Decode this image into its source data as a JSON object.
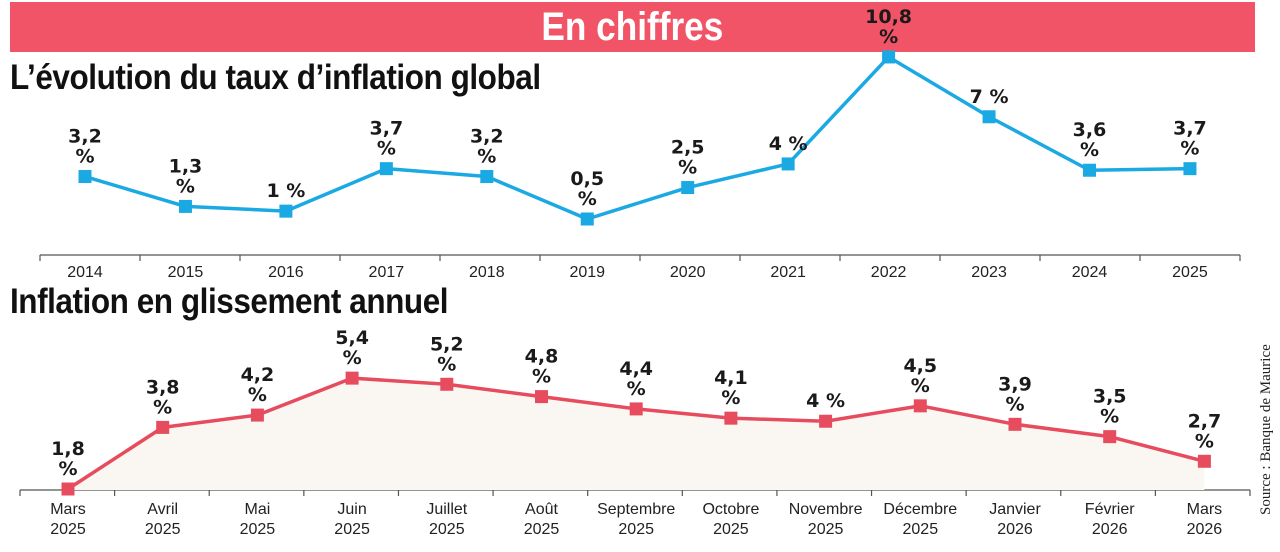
{
  "header": {
    "title": "En chiffres"
  },
  "source": "Source : Banque de Maurice",
  "colors": {
    "banner": "#f05466",
    "series1": "#1ba9e3",
    "series2": "#e74c5e",
    "fill2": "#faf7f2"
  },
  "chart_data": [
    {
      "type": "line",
      "title": "L’évolution du taux d’inflation global",
      "categories": [
        "2014",
        "2015",
        "2016",
        "2017",
        "2018",
        "2019",
        "2020",
        "2021",
        "2022",
        "2023",
        "2024",
        "2025"
      ],
      "values": [
        3.2,
        1.3,
        1,
        3.7,
        3.2,
        0.5,
        2.5,
        4,
        10.8,
        7,
        3.6,
        3.7
      ],
      "labels": [
        [
          "3,2",
          "%"
        ],
        [
          "1,3",
          "%"
        ],
        [
          "1 %"
        ],
        [
          "3,7",
          "%"
        ],
        [
          "3,2",
          "%"
        ],
        [
          "0,5",
          "%"
        ],
        [
          "2,5",
          "%"
        ],
        [
          "4 %"
        ],
        [
          "10,8",
          "%"
        ],
        [
          "7 %"
        ],
        [
          "3,6",
          "%"
        ],
        [
          "3,7",
          "%"
        ]
      ],
      "unit": "%",
      "grid": false
    },
    {
      "type": "area",
      "title": "Inflation en glissement annuel",
      "categories": [
        [
          "Mars",
          "2025"
        ],
        [
          "Avril",
          "2025"
        ],
        [
          "Mai",
          "2025"
        ],
        [
          "Juin",
          "2025"
        ],
        [
          "Juillet",
          "2025"
        ],
        [
          "Août",
          "2025"
        ],
        [
          "Septembre",
          "2025"
        ],
        [
          "Octobre",
          "2025"
        ],
        [
          "Novembre",
          "2025"
        ],
        [
          "Décembre",
          "2025"
        ],
        [
          "Janvier",
          "2026"
        ],
        [
          "Février",
          "2026"
        ],
        [
          "Mars",
          "2026"
        ]
      ],
      "values": [
        1.8,
        3.8,
        4.2,
        5.4,
        5.2,
        4.8,
        4.4,
        4.1,
        4,
        4.5,
        3.9,
        3.5,
        2.7
      ],
      "labels": [
        [
          "1,8",
          "%"
        ],
        [
          "3,8",
          "%"
        ],
        [
          "4,2",
          "%"
        ],
        [
          "5,4",
          "%"
        ],
        [
          "5,2",
          "%"
        ],
        [
          "4,8",
          "%"
        ],
        [
          "4,4",
          "%"
        ],
        [
          "4,1",
          "%"
        ],
        [
          "4 %"
        ],
        [
          "4,5",
          "%"
        ],
        [
          "3,9",
          "%"
        ],
        [
          "3,5",
          "%"
        ],
        [
          "2,7",
          "%"
        ]
      ],
      "unit": "%",
      "grid": false
    }
  ]
}
